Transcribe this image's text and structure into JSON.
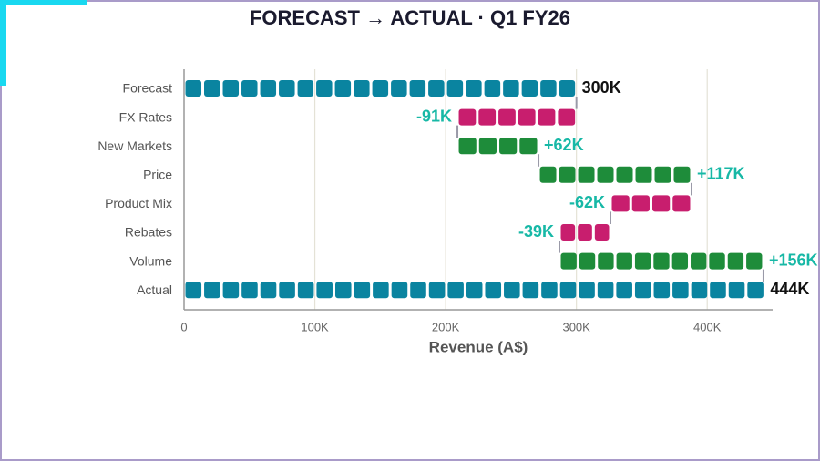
{
  "chart_data": {
    "type": "waterfall",
    "title": "FORECAST → ACTUAL · Q1 FY26",
    "x_label": "Revenue (A$)",
    "categories": [
      "Forecast",
      "FX Rates",
      "New Markets",
      "Price",
      "Product Mix",
      "Rebates",
      "Volume",
      "Actual"
    ],
    "values": [
      300000,
      -91000,
      62000,
      117000,
      -62000,
      -39000,
      156000,
      444000
    ],
    "value_labels": [
      "300K",
      "-91K",
      "+62K",
      "+117K",
      "-62K",
      "-39K",
      "+156K",
      "444K"
    ],
    "measure": [
      "absolute",
      "relative",
      "relative",
      "relative",
      "relative",
      "relative",
      "relative",
      "total"
    ],
    "colors": {
      "total": "#0a84a0",
      "increase": "#1e8c3a",
      "decrease": "#c81e6e"
    },
    "xlim": [
      0,
      450000
    ],
    "xticks": [
      0,
      {
        "value": 100000,
        "label": "100K"
      },
      {
        "value": 200000,
        "label": "200K"
      },
      {
        "value": 300000,
        "label": "300K"
      },
      {
        "value": 400000,
        "label": "400K"
      }
    ],
    "grid": true
  }
}
